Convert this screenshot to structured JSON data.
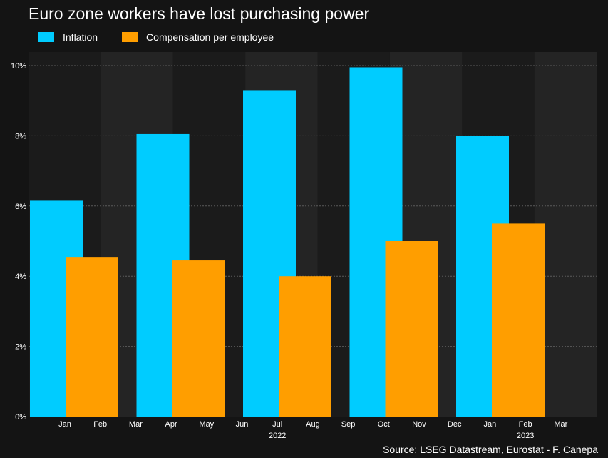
{
  "chart_data": {
    "type": "bar",
    "title": "Euro zone workers have lost purchasing power",
    "source": "Source: LSEG Datastream, Eurostat - F. Canepa",
    "x_ticks": [
      "Jan",
      "Feb",
      "Mar",
      "Apr",
      "May",
      "Jun",
      "Jul",
      "Aug",
      "Sep",
      "Oct",
      "Nov",
      "Dec",
      "Jan",
      "Feb",
      "Mar"
    ],
    "year_labels": [
      {
        "label": "2022",
        "at_tick": 6
      },
      {
        "label": "2023",
        "at_tick": 13
      }
    ],
    "y_ticks": [
      "0%",
      "2%",
      "4%",
      "6%",
      "8%",
      "10%"
    ],
    "ylim": [
      0,
      10
    ],
    "grid": true,
    "legend_position": "top-left",
    "series": [
      {
        "name": "Inflation",
        "color": "#00CCFF",
        "points": [
          {
            "quarter": "Q1 2022",
            "value": 6.15
          },
          {
            "quarter": "Q2 2022",
            "value": 8.05
          },
          {
            "quarter": "Q3 2022",
            "value": 9.3
          },
          {
            "quarter": "Q4 2022",
            "value": 9.95
          },
          {
            "quarter": "Q1 2023",
            "value": 8.0
          }
        ]
      },
      {
        "name": "Compensation per employee",
        "color": "#FF9E00",
        "points": [
          {
            "quarter": "Q1 2022",
            "value": 4.55
          },
          {
            "quarter": "Q2 2022",
            "value": 4.45
          },
          {
            "quarter": "Q3 2022",
            "value": 4.0
          },
          {
            "quarter": "Q4 2022",
            "value": 5.0
          },
          {
            "quarter": "Q1 2023",
            "value": 5.5
          }
        ]
      }
    ]
  },
  "colors": {
    "background": "#141414",
    "band_dark": "#1b1b1b",
    "band_light": "#242424",
    "gridline": "#5a5a5a",
    "axis": "#9a9a9a"
  }
}
